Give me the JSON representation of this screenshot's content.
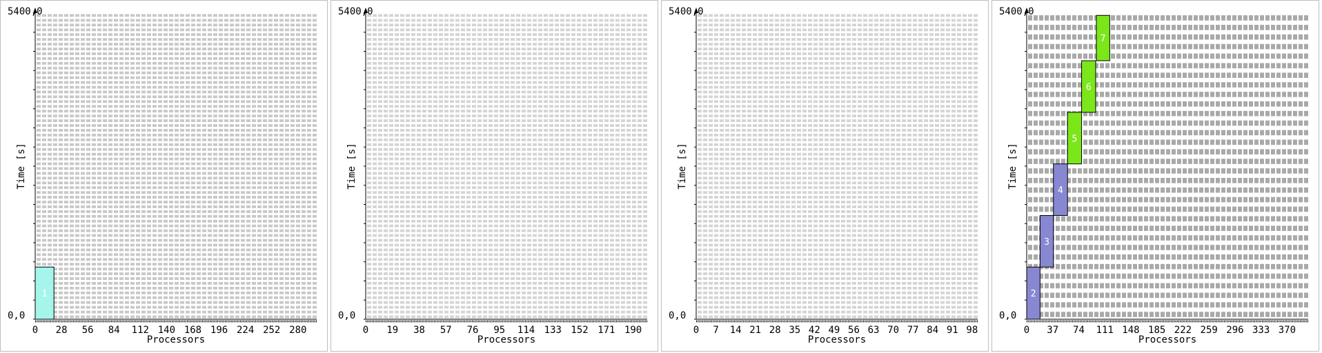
{
  "chart_data": [
    {
      "type": "gantt",
      "xlabel": "Processors",
      "ylabel": "Time [s]",
      "y_top_label": "5400,0",
      "y_bottom_label": "0,0",
      "ylim": [
        0,
        5400
      ],
      "xlim": [
        0,
        300
      ],
      "x_ticks": [
        "0",
        "28",
        "56",
        "84",
        "112",
        "140",
        "168",
        "196",
        "224",
        "252",
        "280"
      ],
      "x_tick_values": [
        0,
        28,
        56,
        84,
        112,
        140,
        168,
        196,
        224,
        252,
        280
      ],
      "grid_rows": 64,
      "grid_color": "#c8c8c8",
      "jobs": [
        {
          "label": "1",
          "x0": 0,
          "x1": 20,
          "t0": 0,
          "t1": 920,
          "color": "#a6f5ea"
        }
      ]
    },
    {
      "type": "gantt",
      "xlabel": "Processors",
      "ylabel": "Time [s]",
      "y_top_label": "5400,0",
      "y_bottom_label": "0,0",
      "ylim": [
        0,
        5400
      ],
      "xlim": [
        0,
        200
      ],
      "x_ticks": [
        "0",
        "19",
        "38",
        "57",
        "76",
        "95",
        "114",
        "133",
        "152",
        "171",
        "190"
      ],
      "x_tick_values": [
        0,
        19,
        38,
        57,
        76,
        95,
        114,
        133,
        152,
        171,
        190
      ],
      "grid_rows": 64,
      "grid_color": "#d4d4d4",
      "jobs": []
    },
    {
      "type": "gantt",
      "xlabel": "Processors",
      "ylabel": "Time [s]",
      "y_top_label": "5400,0",
      "y_bottom_label": "0,0",
      "ylim": [
        0,
        5400
      ],
      "xlim": [
        0,
        100
      ],
      "x_ticks": [
        "0",
        "7",
        "14",
        "21",
        "28",
        "35",
        "42",
        "49",
        "56",
        "63",
        "70",
        "77",
        "84",
        "91",
        "98"
      ],
      "x_tick_values": [
        0,
        7,
        14,
        21,
        28,
        35,
        42,
        49,
        56,
        63,
        70,
        77,
        84,
        91,
        98
      ],
      "grid_rows": 64,
      "grid_color": "#d4d4d4",
      "jobs": []
    },
    {
      "type": "gantt",
      "xlabel": "Processors",
      "ylabel": "Time [s]",
      "y_top_label": "5400,0",
      "y_bottom_label": "0,0",
      "ylim": [
        0,
        5400
      ],
      "xlim": [
        0,
        400
      ],
      "x_ticks": [
        "0",
        "37",
        "74",
        "111",
        "148",
        "185",
        "222",
        "259",
        "296",
        "333",
        "370"
      ],
      "x_tick_values": [
        0,
        37,
        74,
        111,
        148,
        185,
        222,
        259,
        296,
        333,
        370
      ],
      "grid_rows": 32,
      "grid_color": "#a9a9a9",
      "jobs": [
        {
          "label": "2",
          "x0": 0,
          "x1": 19,
          "t0": 0,
          "t1": 920,
          "color": "#8787d2"
        },
        {
          "label": "3",
          "x0": 19,
          "x1": 38,
          "t0": 920,
          "t1": 1830,
          "color": "#8787d2"
        },
        {
          "label": "4",
          "x0": 38,
          "x1": 58,
          "t0": 1830,
          "t1": 2740,
          "color": "#8787d2"
        },
        {
          "label": "5",
          "x0": 58,
          "x1": 78,
          "t0": 2740,
          "t1": 3650,
          "color": "#7be61a"
        },
        {
          "label": "6",
          "x0": 78,
          "x1": 98,
          "t0": 3650,
          "t1": 4560,
          "color": "#7be61a"
        },
        {
          "label": "7",
          "x0": 99,
          "x1": 118,
          "t0": 4560,
          "t1": 5360,
          "color": "#7be61a"
        }
      ]
    }
  ]
}
